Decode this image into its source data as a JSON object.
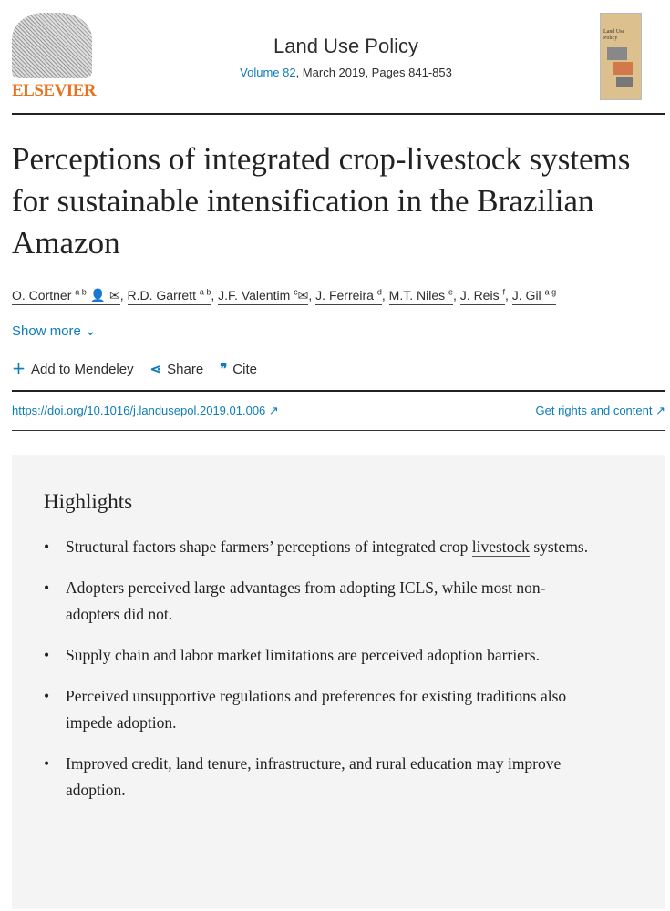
{
  "header": {
    "publisher": "ELSEVIER",
    "journal": "Land Use Policy",
    "volume": "Volume 82",
    "meta": ", March 2019, Pages 841-853",
    "cover_title": "Land Use Policy"
  },
  "article": {
    "title": "Perceptions of integrated crop-livestock systems for sustainable intensification in the Brazilian Amazon",
    "authors": [
      {
        "name": "O. Cortner",
        "sup": "a b"
      },
      {
        "name": "R.D. Garrett",
        "sup": "a b"
      },
      {
        "name": "J.F. Valentim",
        "sup": "c"
      },
      {
        "name": "J. Ferreira",
        "sup": "d"
      },
      {
        "name": "M.T. Niles",
        "sup": "e"
      },
      {
        "name": "J. Reis",
        "sup": "f"
      },
      {
        "name": "J. Gil",
        "sup": "a g"
      }
    ],
    "show_more": "Show more",
    "add_mendeley": "Add to Mendeley",
    "share": "Share",
    "cite": "Cite",
    "doi": "https://doi.org/10.1016/j.landusepol.2019.01.006",
    "rights": "Get rights and content"
  },
  "highlights": {
    "heading": "Highlights",
    "items": [
      {
        "a": "Structural factors shape farmers’ perceptions of integrated crop ",
        "u": "livestock",
        "b": " systems."
      },
      {
        "a": "Adopters perceived large advantages from adopting ICLS, while most non-adopters did not."
      },
      {
        "a": "Supply chain and labor market limitations are perceived adoption barriers."
      },
      {
        "a": "Perceived unsupportive regulations and preferences for existing traditions also impede adoption."
      },
      {
        "a": "Improved credit, ",
        "u": "land tenure",
        "b": ", infrastructure, and rural education may improve adoption."
      }
    ]
  }
}
